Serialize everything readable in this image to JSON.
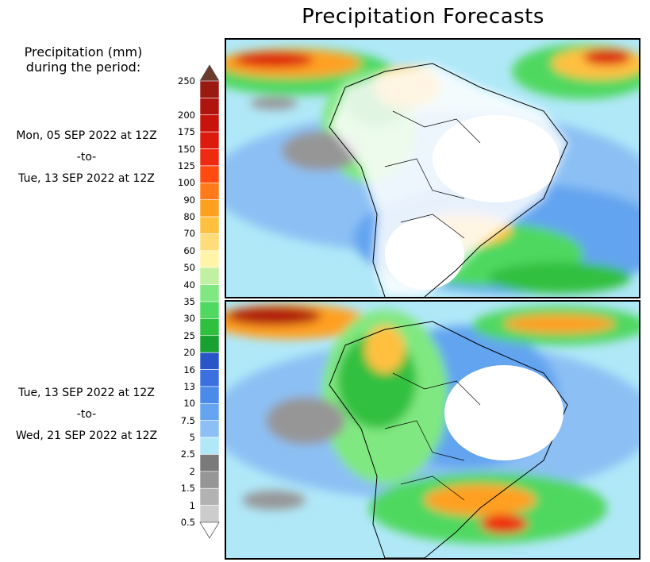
{
  "title": "Precipitation Forecasts",
  "legend": {
    "title_line1": "Precipitation (mm)",
    "title_line2": "during the period:",
    "levels": [
      "250",
      "200",
      "175",
      "150",
      "125",
      "100",
      "90",
      "80",
      "70",
      "60",
      "50",
      "40",
      "35",
      "30",
      "25",
      "20",
      "16",
      "13",
      "10",
      "7.5",
      "5",
      "2.5",
      "2",
      "1.5",
      "1",
      "0.5"
    ],
    "colors": [
      "#9a1a12",
      "#b0140e",
      "#c8120c",
      "#dc1a0e",
      "#ee2a10",
      "#ff4a10",
      "#ff7a1a",
      "#ffa020",
      "#ffc040",
      "#ffdc7a",
      "#fff4a8",
      "#c0f0a0",
      "#80e880",
      "#50d860",
      "#30c040",
      "#18a030",
      "#2856c8",
      "#3a70e0",
      "#4a8ae8",
      "#64a4f0",
      "#8cc0f4",
      "#b0e8f8",
      "#7a7a7a",
      "#969696",
      "#b2b2b2",
      "#cccccc"
    ],
    "top_arrow_color": "#6a3a2a",
    "bottom_arrow_color": "#ffffff"
  },
  "periods": [
    {
      "start": "Mon, 05 SEP 2022 at 12Z",
      "sep": "-to-",
      "end": "Tue, 13 SEP 2022 at 12Z"
    },
    {
      "start": "Tue, 13 SEP 2022 at 12Z",
      "sep": "-to-",
      "end": "Wed, 21 SEP 2022 at 12Z"
    }
  ]
}
